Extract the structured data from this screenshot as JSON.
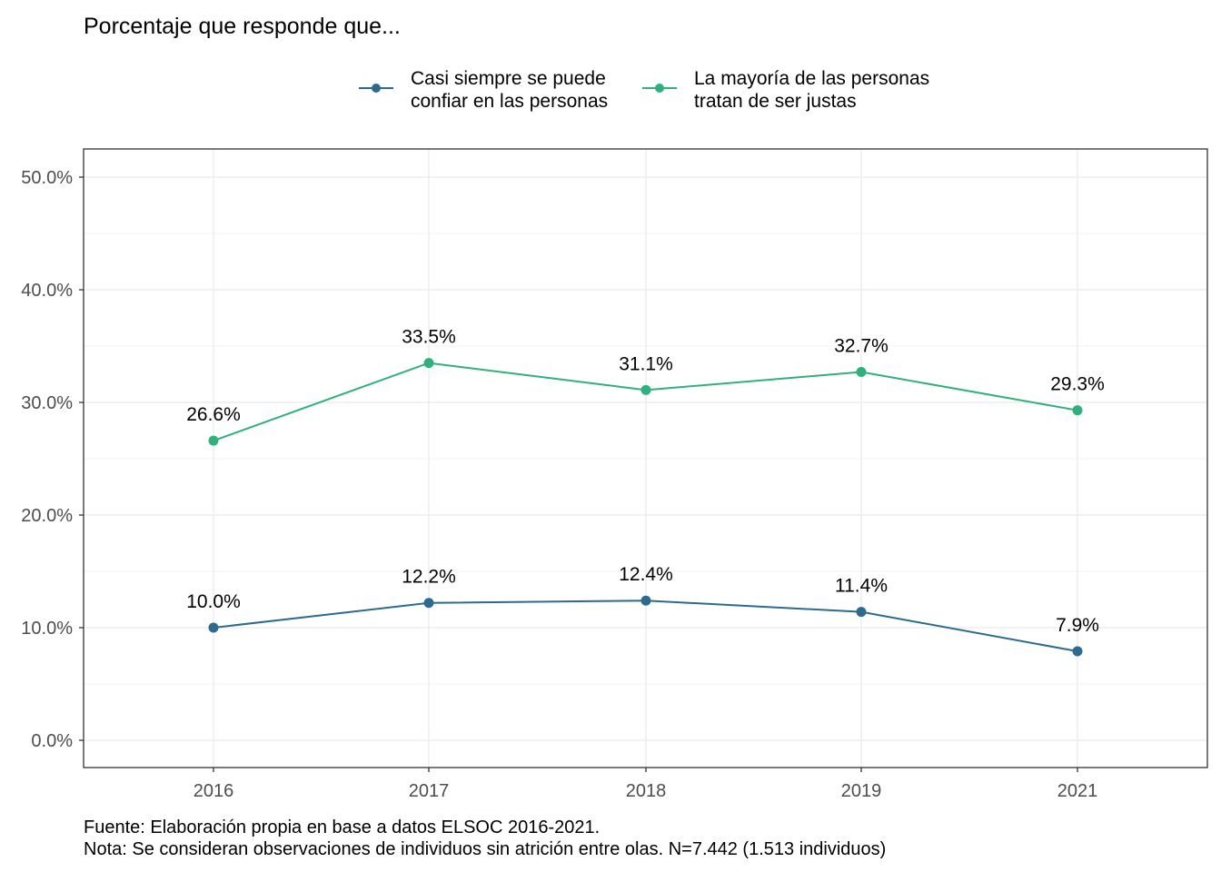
{
  "chart_data": {
    "type": "line",
    "title": "Porcentaje que responde que...",
    "categories": [
      "2016",
      "2017",
      "2018",
      "2019",
      "2021"
    ],
    "ylim": [
      0,
      50
    ],
    "y_ticks": [
      0,
      10,
      20,
      30,
      40,
      50
    ],
    "y_tick_labels": [
      "0.0%",
      "10.0%",
      "20.0%",
      "30.0%",
      "40.0%",
      "50.0%"
    ],
    "grid": true,
    "legend_position": "top",
    "series": [
      {
        "legend_lines": [
          "Casi siempre se puede",
          "confiar en las personas"
        ],
        "color": "#2e6a8d",
        "values": [
          10.0,
          12.2,
          12.4,
          11.4,
          7.9
        ],
        "labels": [
          "10.0%",
          "12.2%",
          "12.4%",
          "11.4%",
          "7.9%"
        ]
      },
      {
        "legend_lines": [
          "La mayoría de las personas",
          "tratan de ser justas"
        ],
        "color": "#2fb07d",
        "values": [
          26.6,
          33.5,
          31.1,
          32.7,
          29.3
        ],
        "labels": [
          "26.6%",
          "33.5%",
          "31.1%",
          "32.7%",
          "29.3%"
        ]
      }
    ],
    "caption_lines": [
      "Fuente: Elaboración propia en base a datos ELSOC 2016-2021.",
      "Nota: Se consideran observaciones de individuos sin atrición entre olas. N=7.442 (1.513 individuos)"
    ]
  }
}
